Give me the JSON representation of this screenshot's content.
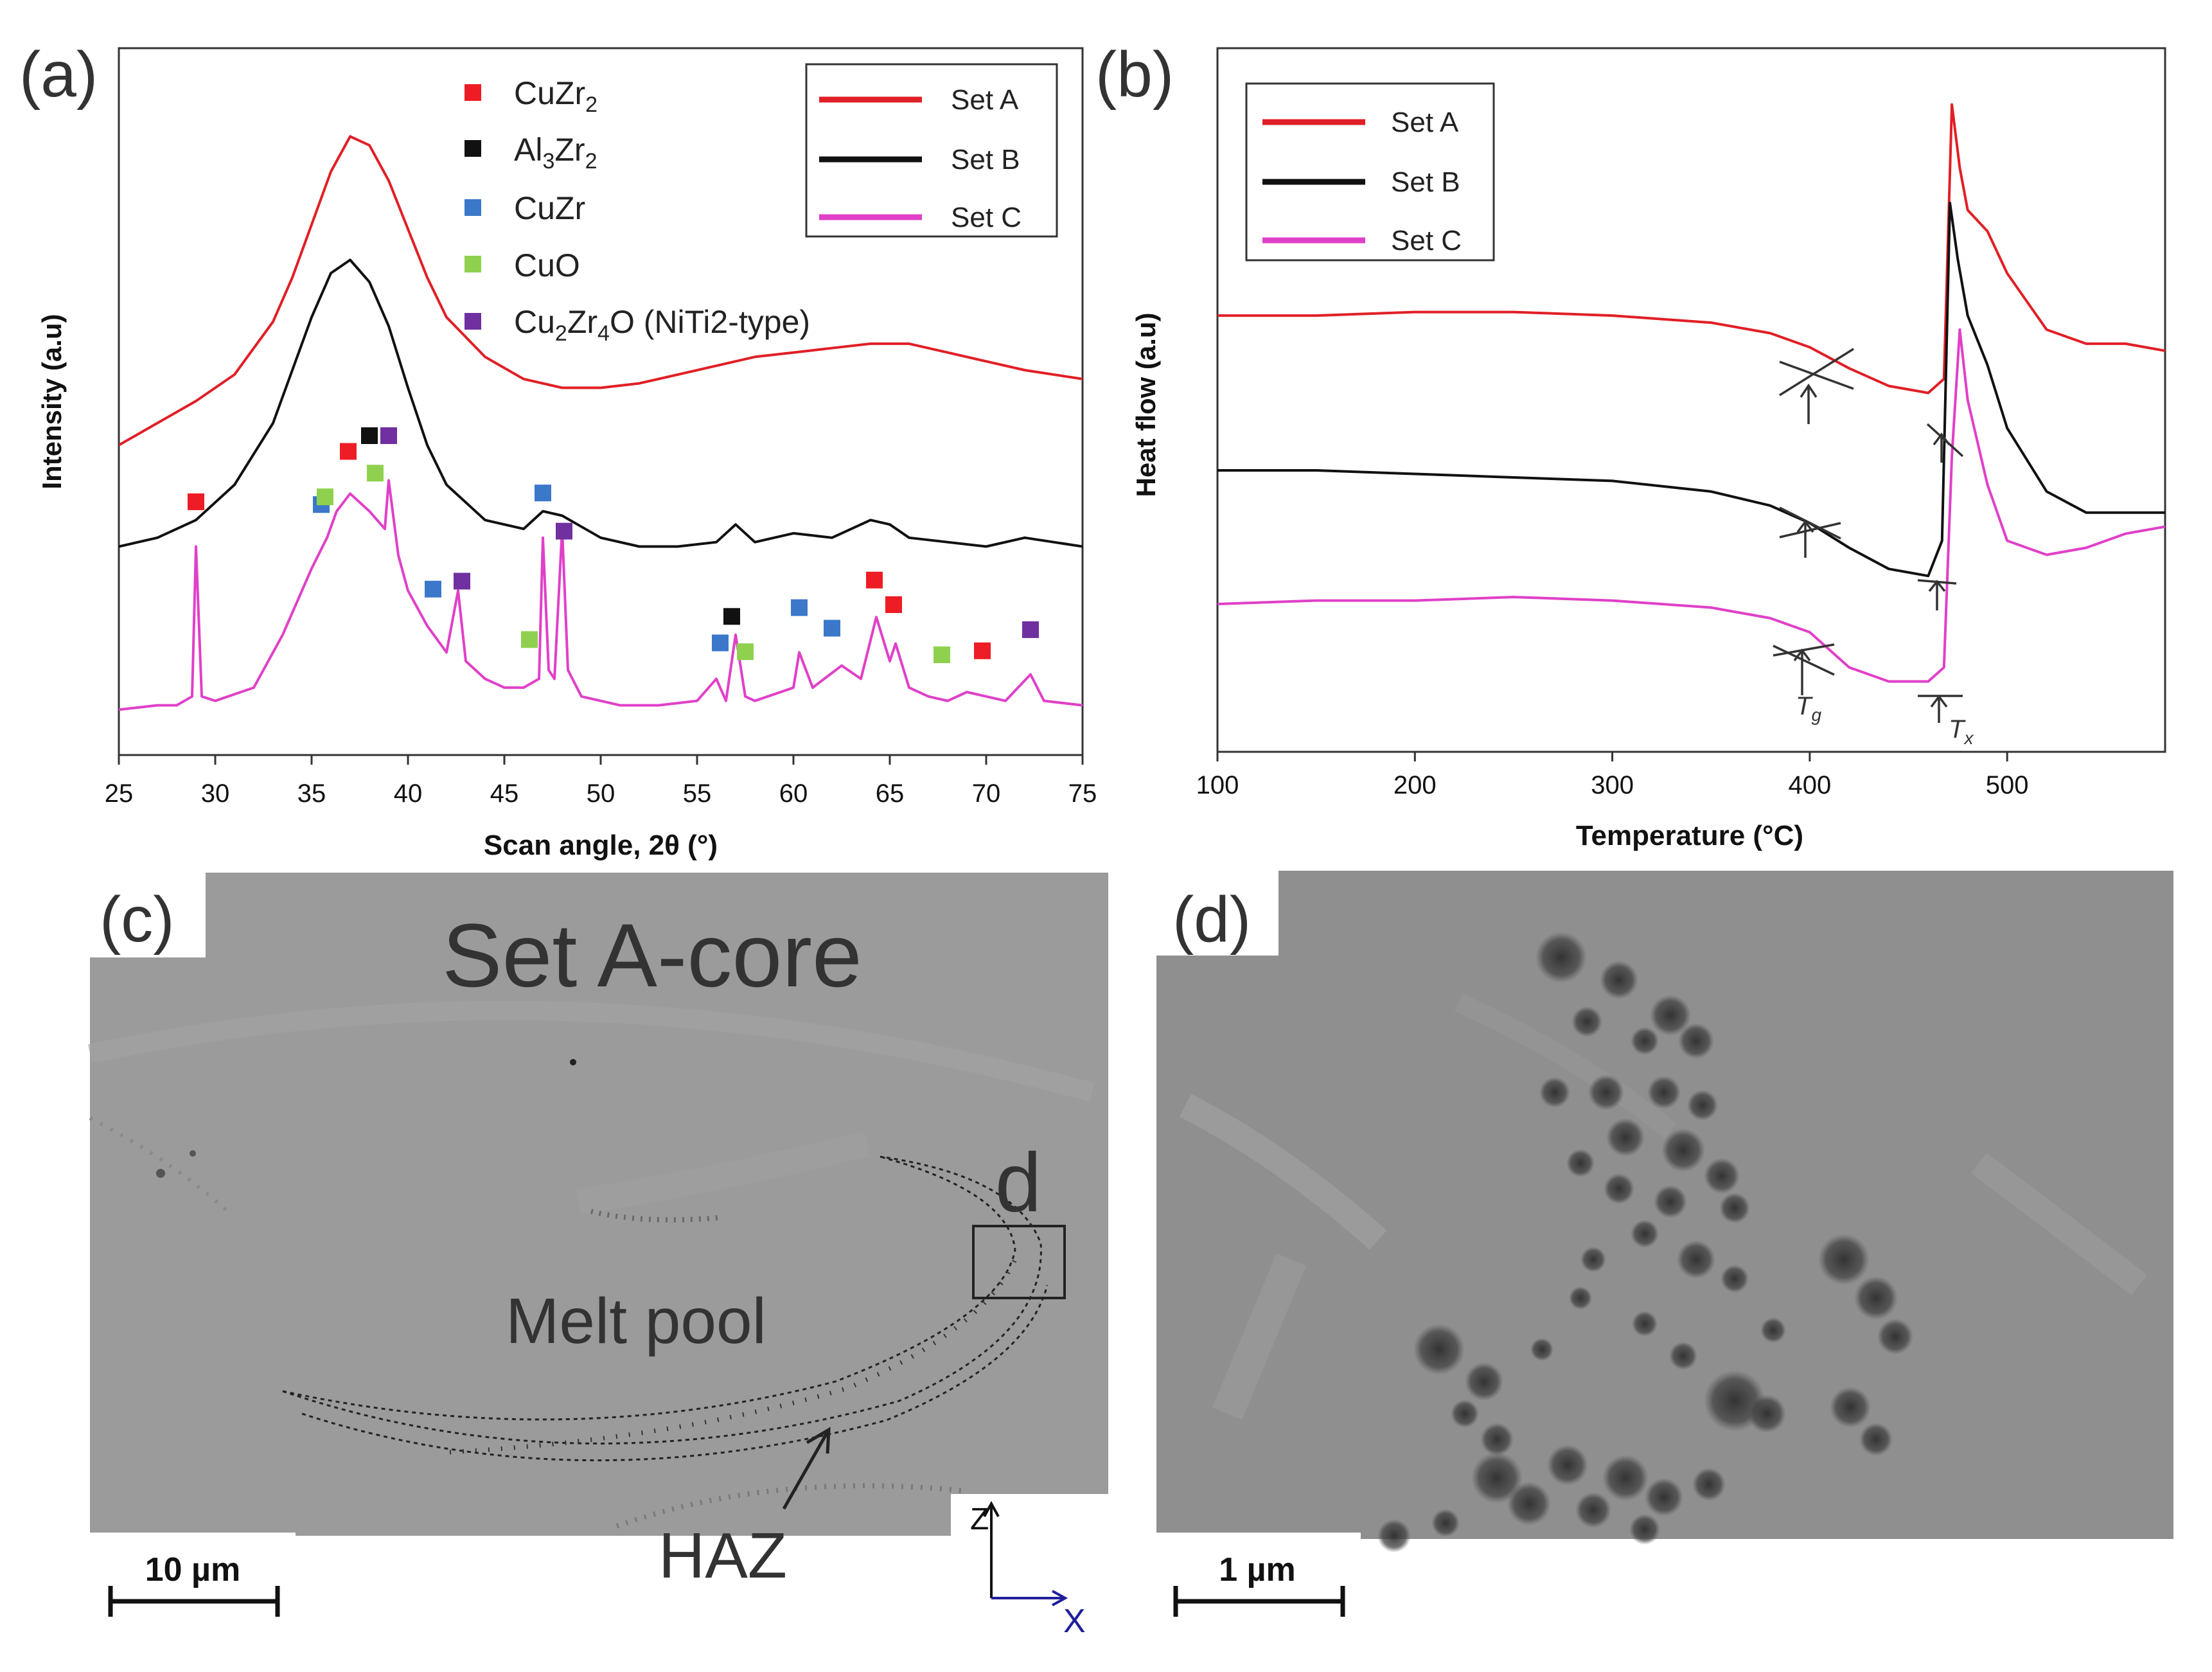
{
  "panels": {
    "a": {
      "label": "(a)",
      "y_axis_label": "Intensity (a.u)",
      "x_axis_label": "Scan angle, 2θ (°)",
      "x_ticks": [
        "25",
        "30",
        "35",
        "40",
        "45",
        "50",
        "55",
        "60",
        "65",
        "70",
        "75"
      ],
      "phase_legend": [
        {
          "name": "CuZr2",
          "color": "#ee1c24"
        },
        {
          "name": "Al3Zr2",
          "color": "#111111"
        },
        {
          "name": "CuZr",
          "color": "#3b78c9"
        },
        {
          "name": "CuO",
          "color": "#8fd14f"
        },
        {
          "name": "Cu2Zr4O (NiTi2-type)",
          "color": "#7030a0"
        }
      ],
      "series_legend": [
        {
          "name": "Set A",
          "color": "#e11f26"
        },
        {
          "name": "Set B",
          "color": "#111111"
        },
        {
          "name": "Set C",
          "color": "#e040c8"
        }
      ]
    },
    "b": {
      "label": "(b)",
      "y_axis_label": "Heat flow (a.u)",
      "x_axis_label": "Temperature (°C)",
      "x_ticks": [
        "100",
        "200",
        "300",
        "400",
        "500"
      ],
      "series_legend": [
        {
          "name": "Set A",
          "color": "#e11f26"
        },
        {
          "name": "Set B",
          "color": "#111111"
        },
        {
          "name": "Set C",
          "color": "#e040c8"
        }
      ],
      "tg_label": "Tg",
      "tx_label": "Tx"
    },
    "c": {
      "label": "(c)",
      "title": "Set A-core",
      "region_d": "d",
      "melt_pool": "Melt pool",
      "haz": "HAZ",
      "scale_bar": "10 µm",
      "axis_z": "Z",
      "axis_x": "X"
    },
    "d": {
      "label": "(d)",
      "scale_bar": "1 µm"
    }
  },
  "chart_data": [
    {
      "type": "line",
      "title": "",
      "xlabel": "Scan angle, 2θ (°)",
      "ylabel": "Intensity (a.u)",
      "xlim": [
        25,
        75
      ],
      "series": [
        {
          "name": "Set A",
          "color": "#e11f26",
          "x": [
            25,
            27,
            29,
            31,
            33,
            34,
            35,
            36,
            37,
            38,
            39,
            40,
            41,
            42,
            44,
            46,
            48,
            50,
            52,
            54,
            56,
            58,
            60,
            62,
            64,
            66,
            68,
            70,
            72,
            75
          ],
          "y": [
            0.28,
            0.33,
            0.38,
            0.44,
            0.56,
            0.66,
            0.78,
            0.9,
            0.98,
            0.96,
            0.88,
            0.77,
            0.66,
            0.57,
            0.48,
            0.43,
            0.41,
            0.41,
            0.42,
            0.44,
            0.46,
            0.48,
            0.49,
            0.5,
            0.51,
            0.51,
            0.49,
            0.47,
            0.45,
            0.43
          ]
        },
        {
          "name": "Set B",
          "color": "#111111",
          "x": [
            25,
            27,
            29,
            31,
            33,
            34,
            35,
            36,
            37,
            38,
            39,
            40,
            41,
            42,
            44,
            46,
            47,
            48,
            50,
            52,
            54,
            56,
            57,
            58,
            60,
            62,
            64,
            65,
            66,
            68,
            70,
            72,
            75
          ],
          "y": [
            0.22,
            0.24,
            0.28,
            0.36,
            0.5,
            0.62,
            0.74,
            0.84,
            0.87,
            0.82,
            0.72,
            0.58,
            0.45,
            0.36,
            0.28,
            0.26,
            0.3,
            0.29,
            0.24,
            0.22,
            0.22,
            0.23,
            0.27,
            0.23,
            0.25,
            0.24,
            0.28,
            0.27,
            0.24,
            0.23,
            0.22,
            0.24,
            0.22
          ]
        },
        {
          "name": "Set C",
          "color": "#e040c8",
          "x": [
            25,
            27,
            28,
            28.8,
            29,
            29.3,
            30,
            32,
            33.5,
            35,
            35.8,
            36.3,
            37,
            38,
            38.8,
            39,
            39.5,
            40,
            41,
            42,
            42.6,
            43,
            44,
            45,
            46,
            46.8,
            47,
            47.3,
            47.6,
            48,
            48.3,
            49,
            51,
            53,
            55,
            56,
            56.5,
            57,
            57.5,
            58,
            60,
            60.3,
            61,
            62.5,
            63.5,
            64.3,
            65,
            65.3,
            66,
            67,
            68,
            69,
            70,
            71,
            72.3,
            73,
            75
          ],
          "y": [
            0.03,
            0.04,
            0.04,
            0.06,
            0.4,
            0.06,
            0.05,
            0.08,
            0.2,
            0.35,
            0.42,
            0.48,
            0.52,
            0.48,
            0.44,
            0.55,
            0.38,
            0.3,
            0.22,
            0.16,
            0.3,
            0.14,
            0.1,
            0.08,
            0.08,
            0.1,
            0.42,
            0.12,
            0.1,
            0.44,
            0.12,
            0.06,
            0.04,
            0.04,
            0.05,
            0.1,
            0.05,
            0.2,
            0.06,
            0.05,
            0.08,
            0.16,
            0.08,
            0.13,
            0.1,
            0.24,
            0.14,
            0.18,
            0.08,
            0.06,
            0.05,
            0.07,
            0.06,
            0.05,
            0.11,
            0.05,
            0.04
          ]
        }
      ],
      "annotations": [
        {
          "phase": "CuZr2",
          "x": [
            29,
            36.9,
            64.2,
            65.2,
            69.8
          ]
        },
        {
          "phase": "Al3Zr2",
          "x": [
            38.0,
            56.8
          ]
        },
        {
          "phase": "CuZr",
          "x": [
            35.5,
            41.3,
            47.0,
            56.2,
            60.3,
            62.0
          ]
        },
        {
          "phase": "CuO",
          "x": [
            35.7,
            38.3,
            46.3,
            57.5,
            67.7
          ]
        },
        {
          "phase": "Cu2Zr4O (NiTi2-type)",
          "x": [
            39.0,
            42.8,
            48.1,
            72.3
          ]
        }
      ]
    },
    {
      "type": "line",
      "title": "",
      "xlabel": "Temperature (°C)",
      "ylabel": "Heat flow (a.u)",
      "xlim": [
        100,
        580
      ],
      "series": [
        {
          "name": "Set A",
          "color": "#e11f26",
          "x": [
            100,
            150,
            200,
            250,
            300,
            350,
            380,
            400,
            420,
            440,
            460,
            468,
            472,
            476,
            480,
            490,
            500,
            520,
            540,
            560,
            580
          ],
          "y": [
            0.62,
            0.62,
            0.625,
            0.625,
            0.62,
            0.61,
            0.595,
            0.575,
            0.545,
            0.52,
            0.51,
            0.53,
            0.92,
            0.83,
            0.77,
            0.74,
            0.68,
            0.6,
            0.58,
            0.58,
            0.57
          ]
        },
        {
          "name": "Set B",
          "color": "#111111",
          "x": [
            100,
            150,
            200,
            250,
            300,
            350,
            380,
            400,
            420,
            440,
            460,
            467,
            471,
            475,
            480,
            490,
            500,
            520,
            540,
            560,
            580
          ],
          "y": [
            0.4,
            0.4,
            0.395,
            0.39,
            0.385,
            0.37,
            0.35,
            0.325,
            0.29,
            0.26,
            0.25,
            0.3,
            0.78,
            0.7,
            0.62,
            0.55,
            0.46,
            0.37,
            0.34,
            0.34,
            0.34
          ]
        },
        {
          "name": "Set C",
          "color": "#e040c8",
          "x": [
            100,
            150,
            200,
            250,
            300,
            350,
            380,
            400,
            420,
            440,
            460,
            468,
            472,
            476,
            480,
            490,
            500,
            520,
            540,
            560,
            580
          ],
          "y": [
            0.21,
            0.215,
            0.215,
            0.22,
            0.215,
            0.205,
            0.19,
            0.17,
            0.12,
            0.1,
            0.1,
            0.12,
            0.42,
            0.6,
            0.5,
            0.38,
            0.3,
            0.28,
            0.29,
            0.31,
            0.32
          ]
        }
      ]
    }
  ]
}
